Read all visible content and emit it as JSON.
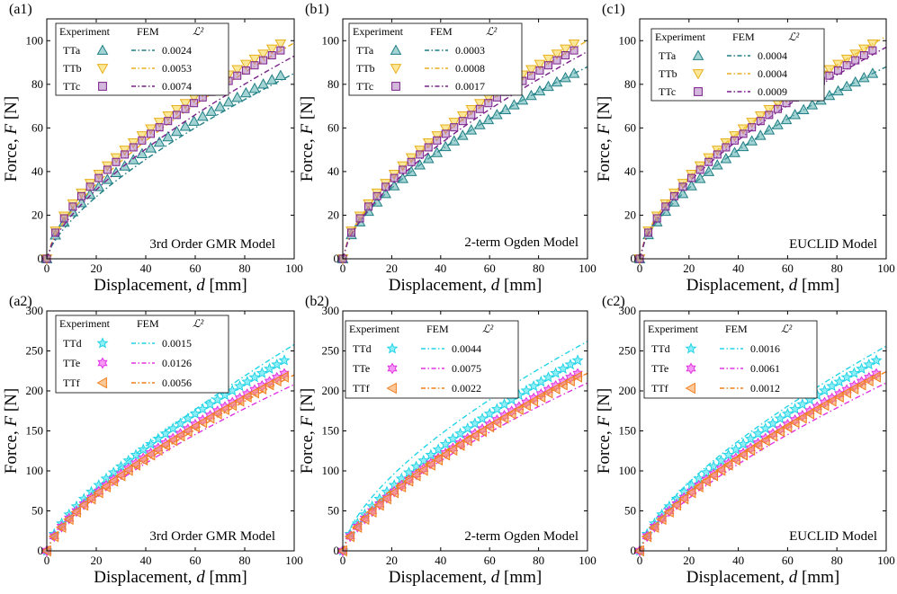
{
  "figure": {
    "x_axis_label_prefix": "Displacement, ",
    "x_axis_label_var": "d",
    "x_axis_label_unit": " [mm]",
    "y_axis_label_prefix": "Force, ",
    "y_axis_label_var": "F",
    "y_axis_label_unit": " [N]",
    "legend_head_experiment": "Experiment",
    "legend_head_fem": "FEM",
    "legend_head_metric": "ℒ²"
  },
  "colors": {
    "TTa": "#5aaeb0",
    "TTb": "#f5d442",
    "TTc": "#b07cbf",
    "TTd": "#33e0ef",
    "TTe": "#ee44ee",
    "TTf": "#f59a45",
    "fem_TTa": "#1f7f84",
    "fem_TTb": "#e8b01e",
    "fem_TTc": "#7a1f8a",
    "fem_TTd": "#22d4e6",
    "fem_TTe": "#e033e0",
    "fem_TTf": "#f07e1c"
  },
  "chart_data": [
    {
      "id": "a1",
      "tag": "(a1)",
      "type": "scatter",
      "model": "3rd Order GMR Model",
      "xlim": [
        0,
        100
      ],
      "ylim": [
        0,
        110
      ],
      "xticks": [
        0,
        20,
        40,
        60,
        80,
        100
      ],
      "yticks": [
        0,
        20,
        40,
        60,
        80,
        100
      ],
      "series": [
        {
          "name": "TTa",
          "marker": "triangle",
          "exp_end": 87,
          "fem_end": 85,
          "exp_shape": 0.62,
          "fem_shape": 0.68,
          "metric": "0.0024"
        },
        {
          "name": "TTb",
          "marker": "invtriangle",
          "exp_end": 102,
          "fem_end": 99,
          "exp_shape": 0.62,
          "fem_shape": 0.66,
          "metric": "0.0053"
        },
        {
          "name": "TTc",
          "marker": "square",
          "exp_end": 99,
          "fem_end": 93,
          "exp_shape": 0.63,
          "fem_shape": 0.67,
          "metric": "0.0074"
        }
      ]
    },
    {
      "id": "b1",
      "tag": "(b1)",
      "type": "scatter",
      "model": "2-term Ogden Model",
      "xlim": [
        0,
        100
      ],
      "ylim": [
        0,
        110
      ],
      "xticks": [
        0,
        20,
        40,
        60,
        80,
        100
      ],
      "yticks": [
        0,
        20,
        40,
        60,
        80,
        100
      ],
      "series": [
        {
          "name": "TTa",
          "marker": "triangle",
          "exp_end": 88,
          "fem_end": 88,
          "exp_shape": 0.62,
          "fem_shape": 0.62,
          "metric": "0.0003"
        },
        {
          "name": "TTb",
          "marker": "invtriangle",
          "exp_end": 102,
          "fem_end": 100,
          "exp_shape": 0.62,
          "fem_shape": 0.63,
          "metric": "0.0008"
        },
        {
          "name": "TTc",
          "marker": "square",
          "exp_end": 99,
          "fem_end": 95,
          "exp_shape": 0.63,
          "fem_shape": 0.64,
          "metric": "0.0017"
        }
      ]
    },
    {
      "id": "c1",
      "tag": "(c1)",
      "type": "scatter",
      "model": "EUCLID Model",
      "xlim": [
        0,
        100
      ],
      "ylim": [
        0,
        110
      ],
      "xticks": [
        0,
        20,
        40,
        60,
        80,
        100
      ],
      "yticks": [
        0,
        20,
        40,
        60,
        80,
        100
      ],
      "series": [
        {
          "name": "TTa",
          "marker": "triangle",
          "exp_end": 88,
          "fem_end": 88,
          "exp_shape": 0.62,
          "fem_shape": 0.62,
          "metric": "0.0004"
        },
        {
          "name": "TTb",
          "marker": "invtriangle",
          "exp_end": 102,
          "fem_end": 102,
          "exp_shape": 0.62,
          "fem_shape": 0.62,
          "metric": "0.0004"
        },
        {
          "name": "TTc",
          "marker": "square",
          "exp_end": 99,
          "fem_end": 97,
          "exp_shape": 0.63,
          "fem_shape": 0.63,
          "metric": "0.0009"
        }
      ]
    },
    {
      "id": "a2",
      "tag": "(a2)",
      "type": "scatter",
      "model": "3rd Order GMR Model",
      "xlim": [
        0,
        100
      ],
      "ylim": [
        0,
        300
      ],
      "xticks": [
        0,
        20,
        40,
        60,
        80,
        100
      ],
      "yticks": [
        0,
        50,
        100,
        150,
        200,
        250,
        300
      ],
      "series": [
        {
          "name": "TTd",
          "marker": "star",
          "exp_end": 245,
          "fem_end": 258,
          "exp_shape": 0.7,
          "fem_shape": 0.74,
          "metric": "0.0015"
        },
        {
          "name": "TTe",
          "marker": "hexagram",
          "exp_end": 228,
          "fem_end": 208,
          "exp_shape": 0.72,
          "fem_shape": 0.7,
          "metric": "0.0126"
        },
        {
          "name": "TTf",
          "marker": "lefttriangle",
          "exp_end": 224,
          "fem_end": 220,
          "exp_shape": 0.72,
          "fem_shape": 0.73,
          "metric": "0.0056"
        }
      ]
    },
    {
      "id": "b2",
      "tag": "(b2)",
      "type": "scatter",
      "model": "2-term Ogden Model",
      "xlim": [
        0,
        100
      ],
      "ylim": [
        0,
        300
      ],
      "xticks": [
        0,
        20,
        40,
        60,
        80,
        100
      ],
      "yticks": [
        0,
        50,
        100,
        150,
        200,
        250,
        300
      ],
      "series": [
        {
          "name": "TTd",
          "marker": "star",
          "exp_end": 245,
          "fem_end": 262,
          "exp_shape": 0.7,
          "fem_shape": 0.64,
          "metric": "0.0044"
        },
        {
          "name": "TTe",
          "marker": "hexagram",
          "exp_end": 228,
          "fem_end": 210,
          "exp_shape": 0.72,
          "fem_shape": 0.68,
          "metric": "0.0075"
        },
        {
          "name": "TTf",
          "marker": "lefttriangle",
          "exp_end": 224,
          "fem_end": 222,
          "exp_shape": 0.72,
          "fem_shape": 0.66,
          "metric": "0.0022"
        }
      ]
    },
    {
      "id": "c2",
      "tag": "(c2)",
      "type": "scatter",
      "model": "EUCLID Model",
      "xlim": [
        0,
        100
      ],
      "ylim": [
        0,
        300
      ],
      "xticks": [
        0,
        20,
        40,
        60,
        80,
        100
      ],
      "yticks": [
        0,
        50,
        100,
        150,
        200,
        250,
        300
      ],
      "series": [
        {
          "name": "TTd",
          "marker": "star",
          "exp_end": 245,
          "fem_end": 256,
          "exp_shape": 0.7,
          "fem_shape": 0.68,
          "metric": "0.0016"
        },
        {
          "name": "TTe",
          "marker": "hexagram",
          "exp_end": 228,
          "fem_end": 210,
          "exp_shape": 0.72,
          "fem_shape": 0.72,
          "metric": "0.0061"
        },
        {
          "name": "TTf",
          "marker": "lefttriangle",
          "exp_end": 224,
          "fem_end": 224,
          "exp_shape": 0.72,
          "fem_shape": 0.7,
          "metric": "0.0012"
        }
      ]
    }
  ]
}
